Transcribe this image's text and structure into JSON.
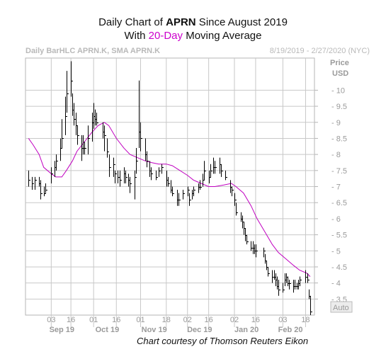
{
  "title": {
    "line1_pre": "Daily Chart of ",
    "line1_ticker": "APRN",
    "line1_post": " Since August 2019",
    "line2_pre": "With ",
    "line2_ma": "20-Day",
    "line2_post": " Moving Average"
  },
  "subtitle_left": "Daily BarHLC APRN.K, SMA APRN.K",
  "subtitle_right": "8/19/2019 - 2/27/2020 (NYC)",
  "caption": "Chart courtesy of Thomson Reuters Eikon",
  "auto_button": "Auto",
  "colors": {
    "price_bars": "#000000",
    "moving_average": "#c000c0",
    "grid": "#c8c8c8"
  },
  "chart_data": {
    "type": "line",
    "ylabel_line1": "Price",
    "ylabel_line2": "USD",
    "y_ticks": [
      10,
      9.5,
      9,
      8.5,
      8,
      7.5,
      7,
      6.5,
      6,
      5.5,
      5,
      4.5,
      4,
      3.5
    ],
    "ylim": [
      3,
      11
    ],
    "grid": true,
    "x_tick_days": [
      "03",
      "16",
      "01",
      "16",
      "01",
      "18",
      "02",
      "16",
      "02",
      "16",
      "03",
      "18"
    ],
    "x_tick_dates": [
      "2019-09-03",
      "2019-09-16",
      "2019-10-01",
      "2019-10-16",
      "2019-11-01",
      "2019-11-18",
      "2019-12-02",
      "2019-12-16",
      "2020-01-02",
      "2020-01-16",
      "2020-02-03",
      "2020-02-18"
    ],
    "month_labels": [
      "Sep 19",
      "Oct 19",
      "Nov 19",
      "Dec 19",
      "Jan 20",
      "Feb 20"
    ],
    "month_label_dates": [
      "2019-09-10",
      "2019-10-10",
      "2019-11-10",
      "2019-12-10",
      "2020-01-10",
      "2020-02-08"
    ],
    "series": [
      {
        "kind": "hlc_bars",
        "data": [
          [
            "2019-08-19",
            7.5,
            7.0,
            7.2
          ],
          [
            "2019-08-21",
            7.3,
            6.9,
            7.1
          ],
          [
            "2019-08-23",
            7.3,
            6.9,
            7.2
          ],
          [
            "2019-08-26",
            7.3,
            7.0,
            7.1
          ],
          [
            "2019-08-27",
            7.2,
            6.6,
            6.8
          ],
          [
            "2019-08-29",
            7.0,
            6.7,
            6.8
          ],
          [
            "2019-08-30",
            7.1,
            6.8,
            6.9
          ],
          [
            "2019-09-03",
            7.6,
            7.1,
            7.4
          ],
          [
            "2019-09-05",
            7.8,
            7.3,
            7.6
          ],
          [
            "2019-09-06",
            8.0,
            7.5,
            7.8
          ],
          [
            "2019-09-09",
            8.5,
            7.8,
            8.2
          ],
          [
            "2019-09-10",
            9.1,
            8.2,
            8.5
          ],
          [
            "2019-09-12",
            9.8,
            8.6,
            9.2
          ],
          [
            "2019-09-13",
            10.6,
            9.3,
            9.9
          ],
          [
            "2019-09-16",
            10.9,
            9.8,
            10.3
          ],
          [
            "2019-09-17",
            9.9,
            9.2,
            9.4
          ],
          [
            "2019-09-18",
            9.6,
            8.9,
            9.1
          ],
          [
            "2019-09-19",
            9.3,
            8.6,
            8.9
          ],
          [
            "2019-09-20",
            8.9,
            8.3,
            8.6
          ],
          [
            "2019-09-23",
            8.6,
            7.8,
            8.2
          ],
          [
            "2019-09-24",
            8.6,
            8.0,
            8.2
          ],
          [
            "2019-09-25",
            8.4,
            8.0,
            8.2
          ],
          [
            "2019-09-27",
            8.9,
            8.0,
            8.5
          ],
          [
            "2019-09-30",
            9.3,
            8.4,
            9.0
          ],
          [
            "2019-10-01",
            9.6,
            8.8,
            9.2
          ],
          [
            "2019-10-02",
            9.4,
            8.9,
            9.1
          ],
          [
            "2019-10-03",
            9.3,
            8.9,
            9.0
          ],
          [
            "2019-10-07",
            9.0,
            8.5,
            8.7
          ],
          [
            "2019-10-08",
            8.9,
            8.1,
            8.6
          ],
          [
            "2019-10-10",
            8.5,
            7.9,
            8.1
          ],
          [
            "2019-10-11",
            8.0,
            7.3,
            7.6
          ],
          [
            "2019-10-14",
            7.9,
            7.3,
            7.7
          ],
          [
            "2019-10-15",
            7.5,
            7.1,
            7.4
          ],
          [
            "2019-10-17",
            7.5,
            7.1,
            7.3
          ],
          [
            "2019-10-18",
            7.5,
            7.0,
            7.2
          ],
          [
            "2019-10-21",
            7.6,
            7.1,
            7.4
          ],
          [
            "2019-10-22",
            7.5,
            7.1,
            7.3
          ],
          [
            "2019-10-24",
            7.4,
            7.0,
            7.2
          ],
          [
            "2019-10-25",
            7.3,
            6.8,
            7.1
          ],
          [
            "2019-10-28",
            7.5,
            6.6,
            7.3
          ],
          [
            "2019-10-29",
            8.2,
            7.4,
            7.8
          ],
          [
            "2019-10-31",
            10.3,
            8.2,
            8.7
          ],
          [
            "2019-11-01",
            9.0,
            8.1,
            8.5
          ],
          [
            "2019-11-04",
            8.5,
            7.8,
            8.0
          ],
          [
            "2019-11-05",
            8.1,
            7.6,
            7.8
          ],
          [
            "2019-11-07",
            7.8,
            7.3,
            7.5
          ],
          [
            "2019-11-08",
            7.6,
            7.2,
            7.4
          ],
          [
            "2019-11-11",
            7.5,
            7.2,
            7.3
          ],
          [
            "2019-11-13",
            7.6,
            7.3,
            7.5
          ],
          [
            "2019-11-15",
            7.7,
            7.4,
            7.6
          ],
          [
            "2019-11-18",
            7.5,
            7.0,
            7.2
          ],
          [
            "2019-11-19",
            7.3,
            7.0,
            7.1
          ],
          [
            "2019-11-21",
            7.2,
            6.8,
            6.9
          ],
          [
            "2019-11-22",
            7.0,
            6.7,
            6.8
          ],
          [
            "2019-11-25",
            6.9,
            6.4,
            6.6
          ],
          [
            "2019-11-26",
            6.8,
            6.4,
            6.6
          ],
          [
            "2019-11-29",
            6.9,
            6.6,
            6.8
          ],
          [
            "2019-12-02",
            7.0,
            6.7,
            6.9
          ],
          [
            "2019-12-03",
            6.8,
            6.4,
            6.6
          ],
          [
            "2019-12-05",
            6.9,
            6.6,
            6.8
          ],
          [
            "2019-12-06",
            7.0,
            6.7,
            6.9
          ],
          [
            "2019-12-09",
            7.1,
            6.8,
            7.0
          ],
          [
            "2019-12-10",
            7.2,
            6.9,
            7.0
          ],
          [
            "2019-12-12",
            7.4,
            7.0,
            7.2
          ],
          [
            "2019-12-13",
            7.8,
            7.2,
            7.5
          ],
          [
            "2019-12-16",
            7.5,
            7.1,
            7.3
          ],
          [
            "2019-12-17",
            7.7,
            7.3,
            7.5
          ],
          [
            "2019-12-19",
            7.9,
            7.4,
            7.6
          ],
          [
            "2019-12-20",
            7.8,
            7.4,
            7.6
          ],
          [
            "2019-12-23",
            7.9,
            7.4,
            7.7
          ],
          [
            "2019-12-24",
            7.7,
            7.3,
            7.5
          ],
          [
            "2019-12-27",
            7.5,
            7.2,
            7.3
          ],
          [
            "2019-12-30",
            7.2,
            6.8,
            7.0
          ],
          [
            "2019-12-31",
            7.0,
            6.7,
            6.9
          ],
          [
            "2020-01-02",
            6.8,
            6.4,
            6.6
          ],
          [
            "2020-01-03",
            6.5,
            6.1,
            6.2
          ],
          [
            "2020-01-06",
            6.2,
            5.9,
            6.0
          ],
          [
            "2020-01-07",
            6.1,
            5.7,
            5.9
          ],
          [
            "2020-01-08",
            5.9,
            5.5,
            5.7
          ],
          [
            "2020-01-09",
            5.7,
            5.3,
            5.5
          ],
          [
            "2020-01-10",
            5.5,
            5.2,
            5.3
          ],
          [
            "2020-01-13",
            5.3,
            5.0,
            5.1
          ],
          [
            "2020-01-14",
            5.3,
            4.9,
            5.1
          ],
          [
            "2020-01-15",
            5.2,
            4.9,
            5.0
          ],
          [
            "2020-01-16",
            5.2,
            4.8,
            5.0
          ],
          [
            "2020-01-21",
            5.1,
            4.8,
            5.0
          ],
          [
            "2020-01-22",
            4.9,
            4.6,
            4.7
          ],
          [
            "2020-01-23",
            4.7,
            4.4,
            4.5
          ],
          [
            "2020-01-24",
            4.5,
            4.2,
            4.3
          ],
          [
            "2020-01-27",
            4.4,
            4.0,
            4.2
          ],
          [
            "2020-01-28",
            4.4,
            4.1,
            4.2
          ],
          [
            "2020-01-29",
            4.3,
            3.9,
            4.1
          ],
          [
            "2020-01-30",
            4.2,
            3.8,
            3.9
          ],
          [
            "2020-01-31",
            4.1,
            3.6,
            3.8
          ],
          [
            "2020-02-03",
            4.0,
            3.7,
            3.8
          ],
          [
            "2020-02-04",
            4.3,
            3.9,
            4.1
          ],
          [
            "2020-02-05",
            4.3,
            4.0,
            4.2
          ],
          [
            "2020-02-06",
            4.2,
            3.9,
            4.0
          ],
          [
            "2020-02-07",
            4.1,
            3.8,
            4.0
          ],
          [
            "2020-02-10",
            4.1,
            3.7,
            3.9
          ],
          [
            "2020-02-11",
            4.1,
            3.8,
            3.9
          ],
          [
            "2020-02-12",
            4.0,
            3.8,
            3.9
          ],
          [
            "2020-02-13",
            4.1,
            3.8,
            4.0
          ],
          [
            "2020-02-14",
            4.2,
            3.9,
            4.1
          ],
          [
            "2020-02-18",
            4.4,
            4.0,
            4.2
          ],
          [
            "2020-02-19",
            4.3,
            4.0,
            4.1
          ],
          [
            "2020-02-20",
            3.8,
            3.5,
            3.6
          ],
          [
            "2020-02-21",
            3.6,
            3.0,
            3.1
          ]
        ]
      },
      {
        "kind": "line",
        "data": [
          [
            "2019-08-19",
            8.5
          ],
          [
            "2019-08-22",
            8.3
          ],
          [
            "2019-08-26",
            8.0
          ],
          [
            "2019-08-29",
            7.6
          ],
          [
            "2019-09-03",
            7.4
          ],
          [
            "2019-09-06",
            7.3
          ],
          [
            "2019-09-10",
            7.3
          ],
          [
            "2019-09-13",
            7.5
          ],
          [
            "2019-09-17",
            7.8
          ],
          [
            "2019-09-20",
            8.1
          ],
          [
            "2019-09-25",
            8.4
          ],
          [
            "2019-09-30",
            8.7
          ],
          [
            "2019-10-04",
            8.9
          ],
          [
            "2019-10-08",
            9.0
          ],
          [
            "2019-10-11",
            8.9
          ],
          [
            "2019-10-16",
            8.5
          ],
          [
            "2019-10-21",
            8.2
          ],
          [
            "2019-10-25",
            8.0
          ],
          [
            "2019-10-30",
            7.9
          ],
          [
            "2019-11-04",
            7.8
          ],
          [
            "2019-11-08",
            7.75
          ],
          [
            "2019-11-13",
            7.7
          ],
          [
            "2019-11-18",
            7.7
          ],
          [
            "2019-11-22",
            7.65
          ],
          [
            "2019-11-27",
            7.5
          ],
          [
            "2019-12-02",
            7.35
          ],
          [
            "2019-12-06",
            7.2
          ],
          [
            "2019-12-11",
            7.1
          ],
          [
            "2019-12-16",
            7.0
          ],
          [
            "2019-12-20",
            7.0
          ],
          [
            "2019-12-26",
            7.05
          ],
          [
            "2019-12-31",
            7.1
          ],
          [
            "2020-01-03",
            7.0
          ],
          [
            "2020-01-08",
            6.8
          ],
          [
            "2020-01-13",
            6.4
          ],
          [
            "2020-01-17",
            6.0
          ],
          [
            "2020-01-22",
            5.6
          ],
          [
            "2020-01-27",
            5.2
          ],
          [
            "2020-01-31",
            4.95
          ],
          [
            "2020-02-05",
            4.75
          ],
          [
            "2020-02-10",
            4.55
          ],
          [
            "2020-02-14",
            4.4
          ],
          [
            "2020-02-19",
            4.3
          ],
          [
            "2020-02-21",
            4.2
          ]
        ]
      }
    ]
  }
}
